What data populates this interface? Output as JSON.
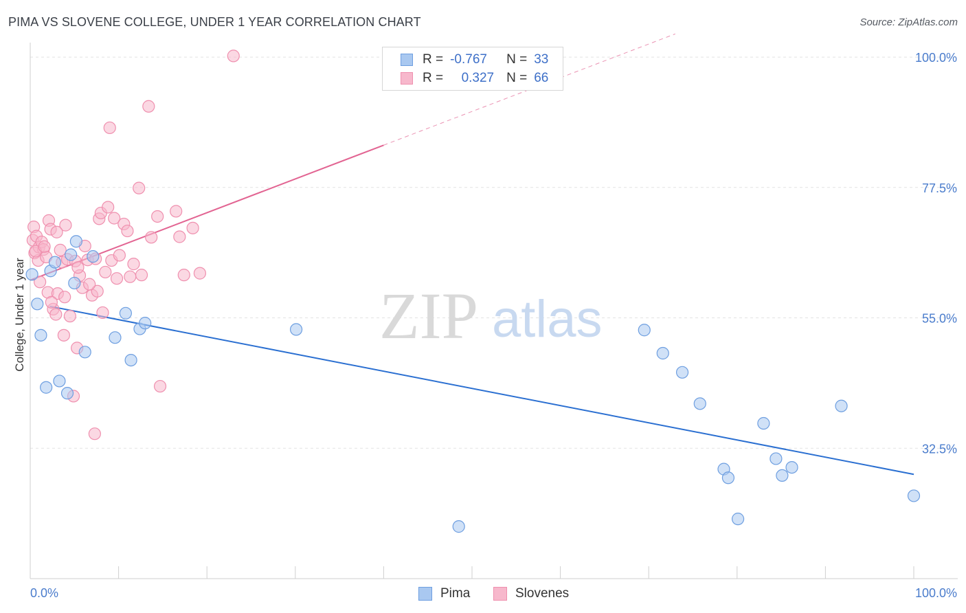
{
  "title": "PIMA VS SLOVENE COLLEGE, UNDER 1 YEAR CORRELATION CHART",
  "source": "Source: ZipAtlas.com",
  "watermark": {
    "zip": "ZIP",
    "atlas": "atlas"
  },
  "legend": {
    "rows": [
      {
        "r_label": "R =",
        "r_value": "-0.767",
        "n_label": "N =",
        "n_value": "33"
      },
      {
        "r_label": "R =",
        "r_value": "0.327",
        "n_label": "N =",
        "n_value": "66"
      }
    ]
  },
  "bottom_legend": {
    "pima": "Pima",
    "slovenes": "Slovenes"
  },
  "colors": {
    "pima_fill": "#a9c8f0",
    "pima_stroke": "#6d9ee0",
    "pima_line": "#2a6fd1",
    "slovene_fill": "#f7b8cc",
    "slovene_stroke": "#ef8fae",
    "slovene_line": "#e26492",
    "tick_text": "#4a7ccc",
    "grid": "#e3e3e3"
  },
  "chart_data": {
    "type": "scatter",
    "title": "PIMA VS SLOVENE COLLEGE, UNDER 1 YEAR CORRELATION CHART",
    "xlabel": "",
    "ylabel": "College, Under 1 year",
    "xlim": [
      0,
      100
    ],
    "ylim": [
      10,
      102.5
    ],
    "x_tick_labels": [
      "0.0%",
      "100.0%"
    ],
    "y_ticks": [
      32.5,
      55.0,
      77.5,
      100.0
    ],
    "y_tick_labels": [
      "32.5%",
      "55.0%",
      "77.5%",
      "100.0%"
    ],
    "grid": true,
    "series": [
      {
        "name": "Pima",
        "x": [
          0.2,
          0.8,
          1.2,
          1.8,
          2.3,
          2.8,
          3.3,
          4.2,
          4.6,
          5.0,
          5.2,
          6.2,
          7.1,
          9.6,
          10.8,
          11.4,
          12.4,
          13.0,
          30.1,
          48.5,
          69.5,
          71.6,
          73.8,
          75.8,
          78.5,
          79.0,
          80.1,
          83.0,
          84.4,
          85.1,
          86.2,
          91.8,
          100.0
        ],
        "y": [
          62.5,
          57.4,
          52.0,
          43.0,
          63.1,
          64.6,
          44.1,
          42.0,
          65.9,
          61.0,
          68.2,
          49.1,
          65.6,
          51.6,
          55.8,
          47.7,
          53.1,
          54.1,
          53.0,
          19.0,
          52.9,
          48.9,
          45.6,
          40.2,
          28.9,
          27.4,
          20.3,
          36.8,
          30.7,
          27.8,
          29.2,
          39.8,
          24.3
        ]
      },
      {
        "name": "Slovenes",
        "x": [
          0.3,
          0.4,
          0.5,
          0.7,
          0.9,
          1.0,
          1.3,
          1.5,
          1.8,
          2.0,
          2.1,
          2.3,
          2.6,
          2.9,
          3.1,
          3.4,
          3.6,
          3.8,
          3.9,
          4.0,
          4.2,
          4.5,
          4.9,
          5.1,
          5.3,
          5.6,
          5.9,
          6.2,
          6.5,
          7.0,
          7.3,
          7.6,
          7.8,
          8.0,
          8.2,
          8.5,
          8.8,
          9.0,
          9.2,
          9.5,
          9.8,
          10.1,
          10.6,
          11.0,
          11.3,
          11.7,
          12.3,
          12.6,
          13.4,
          14.4,
          14.7,
          16.5,
          16.9,
          17.4,
          18.4,
          23.0,
          0.6,
          1.1,
          1.6,
          2.4,
          3.0,
          5.4,
          6.7,
          7.4,
          13.7,
          19.2
        ],
        "y": [
          68.4,
          70.7,
          66.2,
          69.1,
          64.9,
          67.2,
          68.1,
          66.8,
          65.5,
          59.4,
          71.8,
          70.3,
          56.5,
          55.6,
          59.2,
          66.7,
          64.6,
          52.0,
          58.6,
          71.0,
          65.1,
          55.3,
          41.5,
          64.8,
          49.8,
          62.3,
          60.2,
          67.4,
          65.0,
          58.9,
          35.0,
          59.6,
          72.1,
          73.1,
          55.9,
          62.9,
          74.1,
          87.8,
          64.9,
          72.2,
          61.8,
          65.8,
          71.2,
          70.0,
          62.1,
          64.3,
          77.4,
          62.4,
          91.5,
          72.5,
          43.2,
          73.4,
          69.0,
          62.4,
          70.5,
          100.2,
          66.5,
          61.2,
          67.3,
          57.7,
          69.8,
          63.7,
          60.8,
          65.2,
          68.9,
          62.7
        ]
      }
    ],
    "trend_lines": [
      {
        "series": "Pima",
        "x": [
          2.2,
          100.0
        ],
        "y": [
          57.0,
          28.0
        ],
        "dashed_extension": false
      },
      {
        "series": "Slovenes",
        "x": [
          0.0,
          40.0
        ],
        "y": [
          61.5,
          84.8
        ],
        "dashed_extension_to": [
          73.0,
          104.0
        ]
      }
    ]
  }
}
